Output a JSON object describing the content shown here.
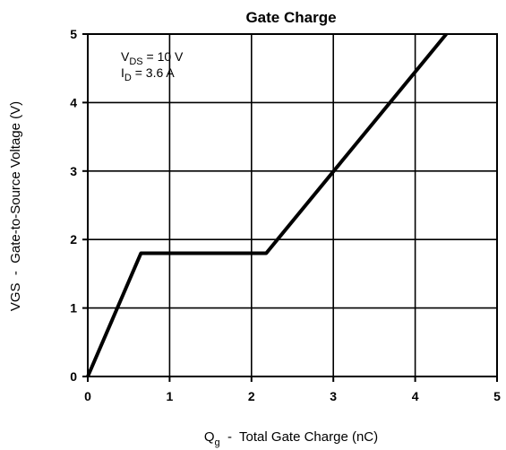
{
  "chart_data": {
    "type": "line",
    "title": "Gate Charge",
    "xlabel": {
      "sym": "Q",
      "sub": "g",
      "rest": "  -  Total Gate Charge (nC)"
    },
    "ylabel": "VGS  -  Gate-to-Source Voltage (V)",
    "xlim": [
      0,
      5
    ],
    "ylim": [
      0,
      5
    ],
    "xticks": [
      "0",
      "1",
      "2",
      "3",
      "4",
      "5"
    ],
    "yticks": [
      "0",
      "1",
      "2",
      "3",
      "4",
      "5"
    ],
    "grid": true,
    "annotations": [
      {
        "sym": "V",
        "sub": "DS",
        "rest": " = 10 V"
      },
      {
        "sym": "I",
        "sub": "D",
        "rest": " = 3.6 A"
      }
    ],
    "series": [
      {
        "x": [
          0,
          0.65,
          2.18,
          4.38
        ],
        "y": [
          0,
          1.8,
          1.8,
          5.0
        ]
      }
    ]
  }
}
